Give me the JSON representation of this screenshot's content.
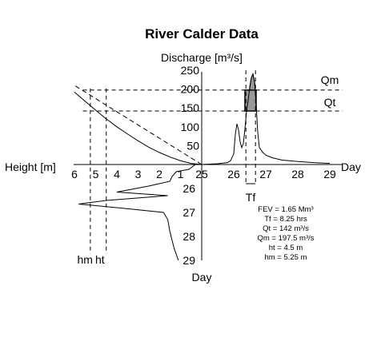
{
  "chart_data": [
    {
      "panel": "discharge",
      "type": "line",
      "title": "River Calder Data",
      "xlabel": "Day",
      "ylabel": "Discharge [m³/s]",
      "xlim": [
        25,
        29
      ],
      "ylim": [
        0,
        250
      ],
      "x_ticks": [
        "25",
        "26",
        "27",
        "28",
        "29"
      ],
      "y_ticks": [
        "50",
        "100",
        "150",
        "200",
        "250"
      ],
      "series": [
        {
          "x": [
            25.0,
            25.5,
            25.8,
            25.9,
            26.0,
            26.05,
            26.1,
            26.15,
            26.2,
            26.25,
            26.3,
            26.35,
            26.4,
            26.45,
            26.5,
            26.55,
            26.6,
            26.65,
            26.7,
            26.75,
            26.8,
            26.9,
            27.0,
            27.2,
            27.5,
            28.0,
            28.5,
            29.0
          ],
          "y": [
            0,
            2,
            5,
            10,
            28,
            80,
            108,
            92,
            60,
            45,
            55,
            95,
            140,
            170,
            205,
            230,
            240,
            220,
            160,
            85,
            45,
            33,
            25,
            18,
            12,
            8,
            5,
            3
          ]
        }
      ],
      "reference_lines": [
        {
          "label": "Qm",
          "value": 197.5
        },
        {
          "label": "Qt",
          "value": 142
        }
      ]
    },
    {
      "panel": "stage",
      "type": "line",
      "xlabel": "Height [m]",
      "ylabel": "Day",
      "xlim": [
        6,
        0
      ],
      "ylim": [
        25,
        29
      ],
      "x_ticks": [
        "6",
        "5",
        "4",
        "3",
        "2",
        "1"
      ],
      "y_ticks": [
        "26",
        "27",
        "28",
        "29"
      ],
      "series": [
        {
          "x": [
            0.3,
            0.6,
            1.2,
            1.4,
            1.5,
            2.5,
            4.0,
            1.6,
            4.5,
            5.8,
            4.0,
            1.8,
            1.6,
            1.5,
            1.3,
            1.1
          ],
          "y": [
            25.0,
            25.2,
            25.3,
            25.5,
            25.7,
            25.9,
            26.15,
            26.3,
            26.5,
            26.65,
            26.8,
            27.0,
            27.3,
            27.8,
            28.5,
            29.0
          ]
        }
      ],
      "marker_labels": [
        "hm",
        "ht"
      ]
    },
    {
      "panel": "rating",
      "type": "line",
      "series": [
        {
          "x": [
            0,
            0.5,
            1,
            1.5,
            2,
            2.5,
            3,
            3.5,
            4,
            4.5,
            5,
            5.5,
            6
          ],
          "y": [
            0,
            3,
            10,
            20,
            32,
            46,
            63,
            81,
            100,
            121,
            144,
            168,
            192
          ]
        },
        {
          "x": [
            0,
            6
          ],
          "y": [
            0,
            210
          ]
        }
      ]
    }
  ],
  "tf_label": "Tf",
  "stats": [
    "FEV = 1.65 Mm³",
    "Tf = 8.25 hrs",
    "Qt = 142 m³/s",
    "Qm = 197.5 m³/s",
    "ht = 4.5 m",
    "hm = 5.25 m"
  ]
}
